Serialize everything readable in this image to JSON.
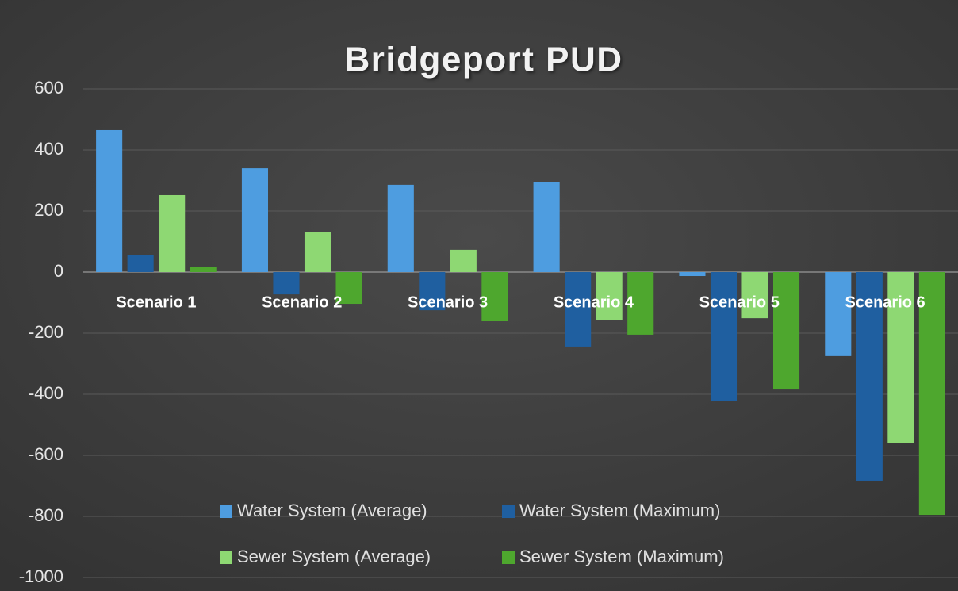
{
  "chart_data": {
    "type": "bar",
    "title": "Bridgeport PUD",
    "categories": [
      "Scenario 1",
      "Scenario 2",
      "Scenario 3",
      "Scenario 4",
      "Scenario 5",
      "Scenario 6"
    ],
    "series": [
      {
        "name": "Water System (Average)",
        "color": "#4e9de0",
        "values": [
          465,
          340,
          286,
          296,
          -13,
          -275
        ]
      },
      {
        "name": "Water System (Maximum)",
        "color": "#1f5fa0",
        "values": [
          55,
          -73,
          -125,
          -244,
          -423,
          -683
        ]
      },
      {
        "name": "Sewer System (Average)",
        "color": "#8ed873",
        "values": [
          252,
          130,
          73,
          -156,
          -151,
          -561
        ]
      },
      {
        "name": "Sewer System (Maximum)",
        "color": "#4ea72e",
        "values": [
          18,
          -104,
          -161,
          -205,
          -382,
          -795
        ]
      }
    ],
    "ylim": [
      -1000,
      600
    ],
    "yticks": [
      -1000,
      -800,
      -600,
      -400,
      -200,
      0,
      200,
      400,
      600
    ],
    "grid": true,
    "legend": "bottom"
  }
}
